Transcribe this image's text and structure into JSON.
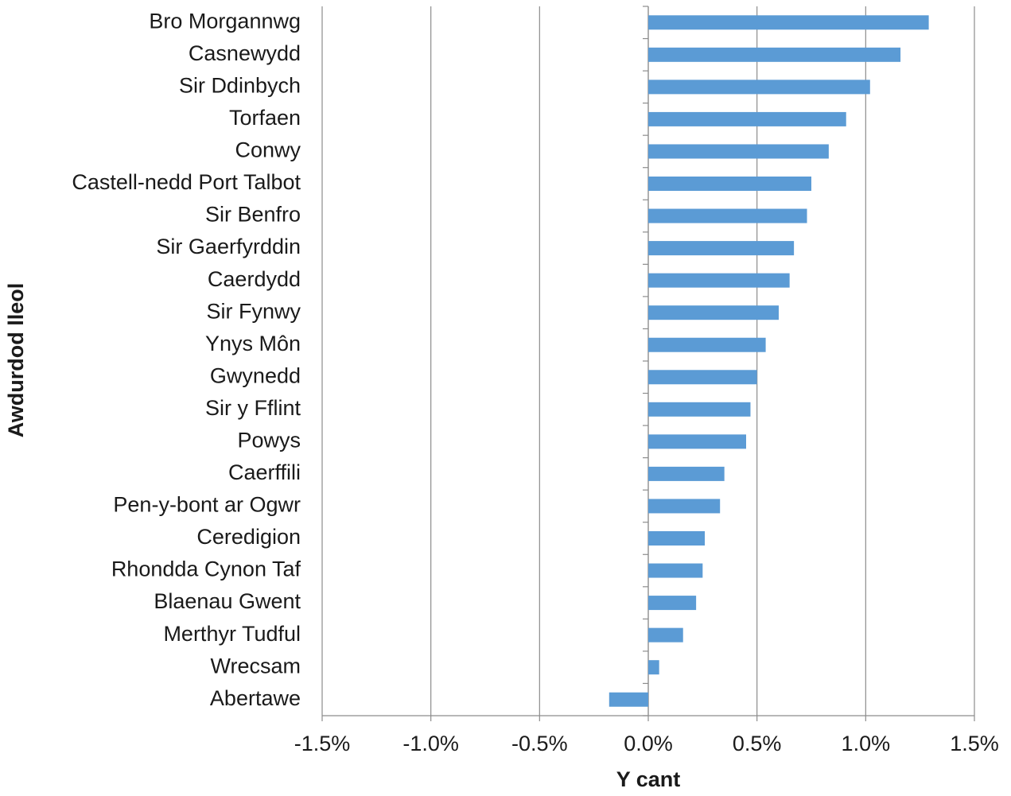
{
  "chart_data": {
    "type": "bar",
    "orientation": "horizontal",
    "xlabel": "Y cant",
    "ylabel": "Awdurdod lleol",
    "categories": [
      "Bro Morgannwg",
      "Casnewydd",
      "Sir Ddinbych",
      "Torfaen",
      "Conwy",
      "Castell-nedd Port Talbot",
      "Sir Benfro",
      "Sir Gaerfyrddin",
      "Caerdydd",
      "Sir Fynwy",
      "Ynys Môn",
      "Gwynedd",
      "Sir y Fflint",
      "Powys",
      "Caerffili",
      "Pen-y-bont ar Ogwr",
      "Ceredigion",
      "Rhondda Cynon Taf",
      "Blaenau Gwent",
      "Merthyr Tudful",
      "Wrecsam",
      "Abertawe"
    ],
    "values": [
      1.29,
      1.16,
      1.02,
      0.91,
      0.83,
      0.75,
      0.73,
      0.67,
      0.65,
      0.6,
      0.54,
      0.5,
      0.47,
      0.45,
      0.35,
      0.33,
      0.26,
      0.25,
      0.22,
      0.16,
      0.05,
      -0.18
    ],
    "color": "#5b9bd5",
    "xlim": [
      -1.5,
      1.5
    ],
    "xticks": [
      {
        "value": -1.5,
        "label": "-1.5%"
      },
      {
        "value": -1.0,
        "label": "-1.0%"
      },
      {
        "value": -0.5,
        "label": "-0.5%"
      },
      {
        "value": 0,
        "label": "0.0%"
      },
      {
        "value": 0.5,
        "label": "0.5%"
      },
      {
        "value": 1.0,
        "label": "1.0%"
      },
      {
        "value": 1.5,
        "label": "1.5%"
      }
    ],
    "grid": true
  }
}
